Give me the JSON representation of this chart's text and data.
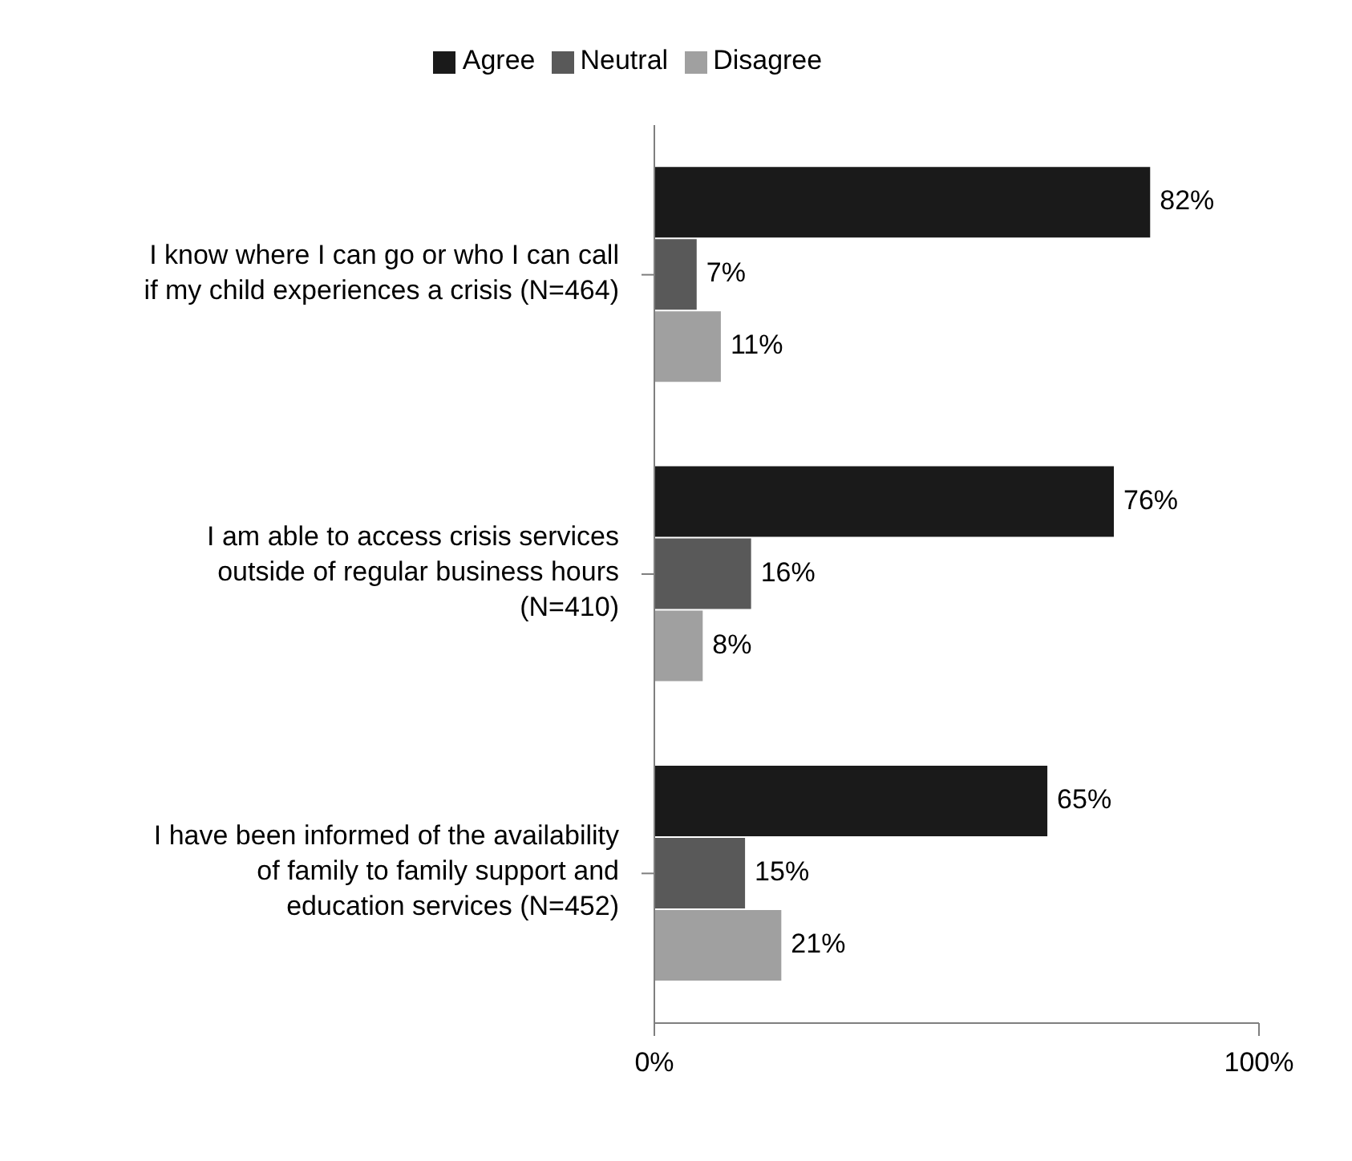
{
  "chart_data": {
    "type": "bar",
    "orientation": "horizontal",
    "categories": [
      "I know where I can go or who I can call if my child experiences a crisis (N=464)",
      "I am able to access crisis services outside of regular business hours (N=410)",
      "I have been informed of the availability of family to family support and education services (N=452)"
    ],
    "series": [
      {
        "name": "Agree",
        "color": "#1a1a1a",
        "values": [
          82,
          76,
          65
        ],
        "value_labels": [
          "82%",
          "76%",
          "65%"
        ]
      },
      {
        "name": "Neutral",
        "color": "#595959",
        "values": [
          7,
          16,
          15
        ],
        "value_labels": [
          "7%",
          "16%",
          "15%"
        ]
      },
      {
        "name": "Disagree",
        "color": "#a0a0a0",
        "values": [
          11,
          8,
          21
        ],
        "value_labels": [
          "11%",
          "8%",
          "21%"
        ]
      }
    ],
    "xlim": [
      0,
      100
    ],
    "xticks": [
      {
        "value": 0,
        "label": "0%"
      },
      {
        "value": 100,
        "label": "100%"
      }
    ],
    "grid": false,
    "legend": "top"
  }
}
